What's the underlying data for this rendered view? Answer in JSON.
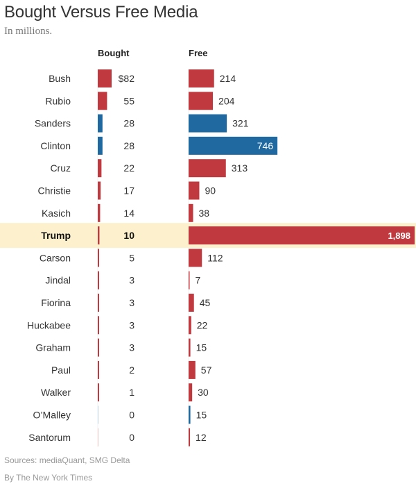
{
  "header": {
    "title": "Bought Versus Free Media",
    "subtitle": "In millions."
  },
  "columns": {
    "bought": "Bought",
    "free": "Free"
  },
  "footer": {
    "sources": "Sources: mediaQuant, SMG Delta",
    "credit": "By The New York Times"
  },
  "colors": {
    "republican": "#c0393f",
    "democrat": "#1f68a0",
    "highlight": "#fdf1cd"
  },
  "chart_data": {
    "type": "bar",
    "title": "Bought Versus Free Media",
    "subtitle": "In millions.",
    "highlight": "Trump",
    "categories": [
      "Bush",
      "Rubio",
      "Sanders",
      "Clinton",
      "Cruz",
      "Christie",
      "Kasich",
      "Trump",
      "Carson",
      "Jindal",
      "Fiorina",
      "Huckabee",
      "Graham",
      "Paul",
      "Walker",
      "O’Malley",
      "Santorum"
    ],
    "parties": [
      "R",
      "R",
      "D",
      "D",
      "R",
      "R",
      "R",
      "R",
      "R",
      "R",
      "R",
      "R",
      "R",
      "R",
      "R",
      "D",
      "R"
    ],
    "series": [
      {
        "name": "Bought",
        "values": [
          82,
          55,
          28,
          28,
          22,
          17,
          14,
          10,
          5,
          3,
          3,
          3,
          3,
          2,
          1,
          0,
          0
        ],
        "labels": [
          "$82",
          "55",
          "28",
          "28",
          "22",
          "17",
          "14",
          "10",
          "5",
          "3",
          "3",
          "3",
          "3",
          "2",
          "1",
          "0",
          "0"
        ]
      },
      {
        "name": "Free",
        "values": [
          214,
          204,
          321,
          746,
          313,
          90,
          38,
          1898,
          112,
          7,
          45,
          22,
          15,
          57,
          30,
          15,
          12
        ],
        "labels": [
          "214",
          "204",
          "321",
          "746",
          "313",
          "90",
          "38",
          "1,898",
          "112",
          "7",
          "45",
          "22",
          "15",
          "57",
          "30",
          "15",
          "12"
        ]
      }
    ]
  }
}
